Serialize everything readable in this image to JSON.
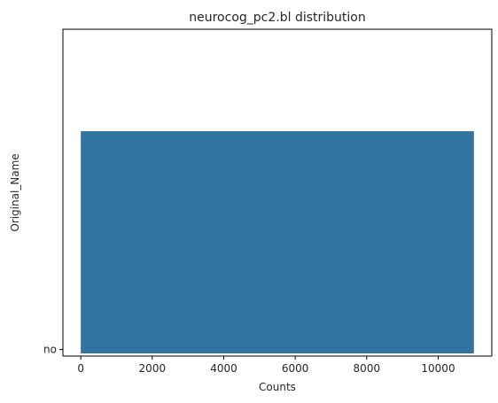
{
  "chart_data": {
    "type": "bar",
    "orientation": "horizontal",
    "title": "neurocog_pc2.bl distribution",
    "xlabel": "Counts",
    "ylabel": "Original_Name",
    "y_tick_labels": [
      "no"
    ],
    "x_ticks": [
      0,
      2000,
      4000,
      6000,
      8000,
      10000
    ],
    "xlim": [
      -500,
      11500
    ],
    "ylim": [
      -0.05,
      2.45
    ],
    "grid": false,
    "legend": "none",
    "bars": [
      {
        "category": "no",
        "y_center": 0.0,
        "height": 0.02,
        "value": 300,
        "color": "#e1812c"
      },
      {
        "category": "",
        "y_center": 0.82,
        "height": 1.7,
        "value": 11000,
        "color": "#3274a1"
      }
    ]
  }
}
